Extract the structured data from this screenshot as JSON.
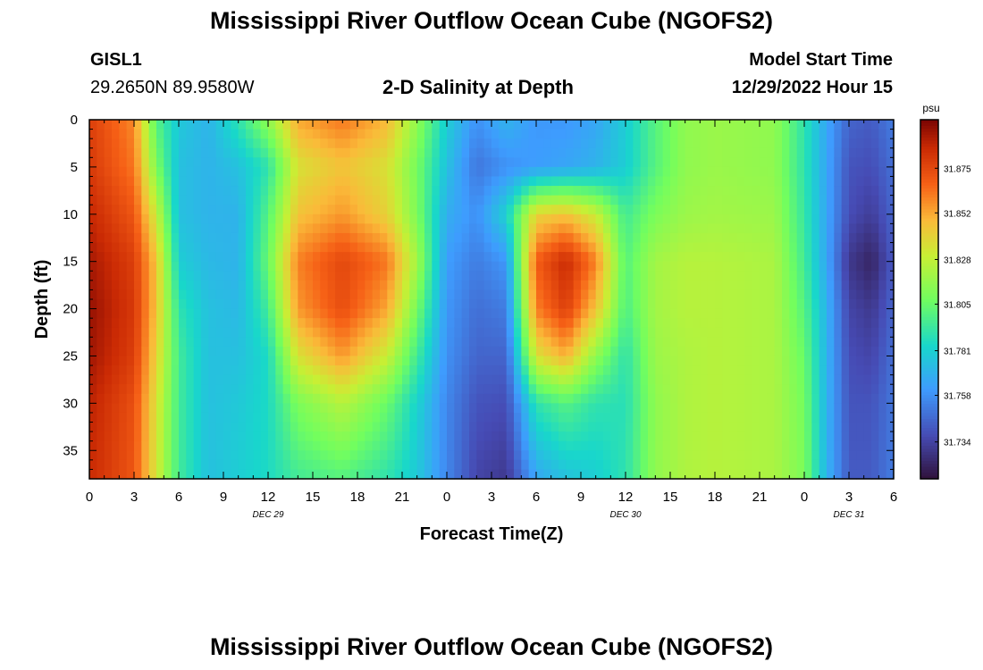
{
  "page": {
    "title": "Mississippi River Outflow Ocean Cube (NGOFS2)",
    "title_repeat": "Mississippi River Outflow Ocean Cube (NGOFS2)",
    "station_id": "GISL1",
    "station_coords": "29.2650N  89.9580W",
    "plot_title": "2-D Salinity at Depth",
    "model_start_label": "Model Start Time",
    "model_start_value": "12/29/2022 Hour 15"
  },
  "chart_data": {
    "type": "heatmap",
    "title": "2-D Salinity at Depth",
    "xlabel": "Forecast Time(Z)",
    "ylabel": "Depth (ft)",
    "x_hours_range": [
      0,
      54
    ],
    "x_ticks": [
      "0",
      "3",
      "6",
      "9",
      "12",
      "15",
      "18",
      "21",
      "0",
      "3",
      "6",
      "9",
      "12",
      "15",
      "18",
      "21",
      "0",
      "3",
      "6"
    ],
    "date_labels": [
      {
        "label": "DEC 29",
        "hour": 12
      },
      {
        "label": "DEC 30",
        "hour": 36
      },
      {
        "label": "DEC 31",
        "hour": 51
      }
    ],
    "y_range": [
      0,
      38
    ],
    "y_ticks": [
      0,
      5,
      10,
      15,
      20,
      25,
      30,
      35
    ],
    "colorbar": {
      "units": "psu",
      "range": [
        31.715,
        31.9
      ],
      "labels": [
        "31.875",
        "31.852",
        "31.828",
        "31.805",
        "31.781",
        "31.758",
        "31.734"
      ]
    },
    "salinity_keyframes": [
      {
        "hour": 0,
        "profile": [
          31.878,
          31.88,
          31.886,
          31.892,
          31.895,
          31.893,
          31.888,
          31.885
        ]
      },
      {
        "hour": 3,
        "profile": [
          31.858,
          31.862,
          31.87,
          31.878,
          31.88,
          31.878,
          31.872,
          31.87
        ]
      },
      {
        "hour": 4.5,
        "profile": [
          31.8,
          31.81,
          31.83,
          31.845,
          31.845,
          31.84,
          31.835,
          31.833
        ]
      },
      {
        "hour": 6,
        "profile": [
          31.778,
          31.775,
          31.775,
          31.78,
          31.79,
          31.795,
          31.795,
          31.795
        ]
      },
      {
        "hour": 8,
        "profile": [
          31.77,
          31.77,
          31.77,
          31.772,
          31.775,
          31.775,
          31.775,
          31.775
        ]
      },
      {
        "hour": 10,
        "profile": [
          31.79,
          31.775,
          31.77,
          31.77,
          31.772,
          31.775,
          31.778,
          31.78
        ]
      },
      {
        "hour": 12,
        "profile": [
          31.815,
          31.79,
          31.8,
          31.805,
          31.795,
          31.785,
          31.785,
          31.785
        ]
      },
      {
        "hour": 14,
        "profile": [
          31.852,
          31.835,
          31.845,
          31.86,
          31.855,
          31.835,
          31.81,
          31.795
        ]
      },
      {
        "hour": 17,
        "profile": [
          31.862,
          31.845,
          31.855,
          31.875,
          31.873,
          31.855,
          31.825,
          31.8
        ]
      },
      {
        "hour": 20,
        "profile": [
          31.848,
          31.835,
          31.84,
          31.862,
          31.852,
          31.83,
          31.805,
          31.79
        ]
      },
      {
        "hour": 22,
        "profile": [
          31.815,
          31.808,
          31.81,
          31.82,
          31.808,
          31.795,
          31.782,
          31.778
        ]
      },
      {
        "hour": 24,
        "profile": [
          31.78,
          31.775,
          31.768,
          31.762,
          31.76,
          31.758,
          31.755,
          31.755
        ]
      },
      {
        "hour": 26,
        "profile": [
          31.758,
          31.75,
          31.758,
          31.752,
          31.748,
          31.745,
          31.74,
          31.735
        ]
      },
      {
        "hour": 28,
        "profile": [
          31.77,
          31.758,
          31.782,
          31.76,
          31.752,
          31.745,
          31.738,
          31.73
        ]
      },
      {
        "hour": 30,
        "profile": [
          31.76,
          31.762,
          31.84,
          31.868,
          31.86,
          31.835,
          31.79,
          31.765
        ]
      },
      {
        "hour": 32,
        "profile": [
          31.76,
          31.765,
          31.845,
          31.885,
          31.878,
          31.85,
          31.8,
          31.775
        ]
      },
      {
        "hour": 34,
        "profile": [
          31.765,
          31.77,
          31.83,
          31.86,
          31.845,
          31.815,
          31.79,
          31.78
        ]
      },
      {
        "hour": 36,
        "profile": [
          31.78,
          31.78,
          31.795,
          31.8,
          31.798,
          31.79,
          31.788,
          31.79
        ]
      },
      {
        "hour": 38,
        "profile": [
          31.8,
          31.8,
          31.81,
          31.82,
          31.82,
          31.818,
          31.815,
          31.815
        ]
      },
      {
        "hour": 40,
        "profile": [
          31.815,
          31.815,
          31.818,
          31.825,
          31.825,
          31.823,
          31.823,
          31.823
        ]
      },
      {
        "hour": 42,
        "profile": [
          31.818,
          31.818,
          31.82,
          31.825,
          31.825,
          31.825,
          31.825,
          31.825
        ]
      },
      {
        "hour": 46,
        "profile": [
          31.815,
          31.815,
          31.818,
          31.822,
          31.822,
          31.822,
          31.822,
          31.822
        ]
      },
      {
        "hour": 48,
        "profile": [
          31.79,
          31.79,
          31.792,
          31.795,
          31.8,
          31.805,
          31.808,
          31.81
        ]
      },
      {
        "hour": 49.5,
        "profile": [
          31.765,
          31.765,
          31.765,
          31.765,
          31.77,
          31.77,
          31.77,
          31.77
        ]
      },
      {
        "hour": 51,
        "profile": [
          31.745,
          31.74,
          31.738,
          31.73,
          31.735,
          31.738,
          31.74,
          31.742
        ]
      },
      {
        "hour": 52.5,
        "profile": [
          31.742,
          31.738,
          31.732,
          31.722,
          31.73,
          31.735,
          31.74,
          31.742
        ]
      },
      {
        "hour": 54,
        "profile": [
          31.752,
          31.748,
          31.745,
          31.742,
          31.745,
          31.748,
          31.75,
          31.752
        ]
      }
    ],
    "profile_depths": [
      0,
      5,
      10,
      15,
      20,
      25,
      30,
      38
    ]
  }
}
